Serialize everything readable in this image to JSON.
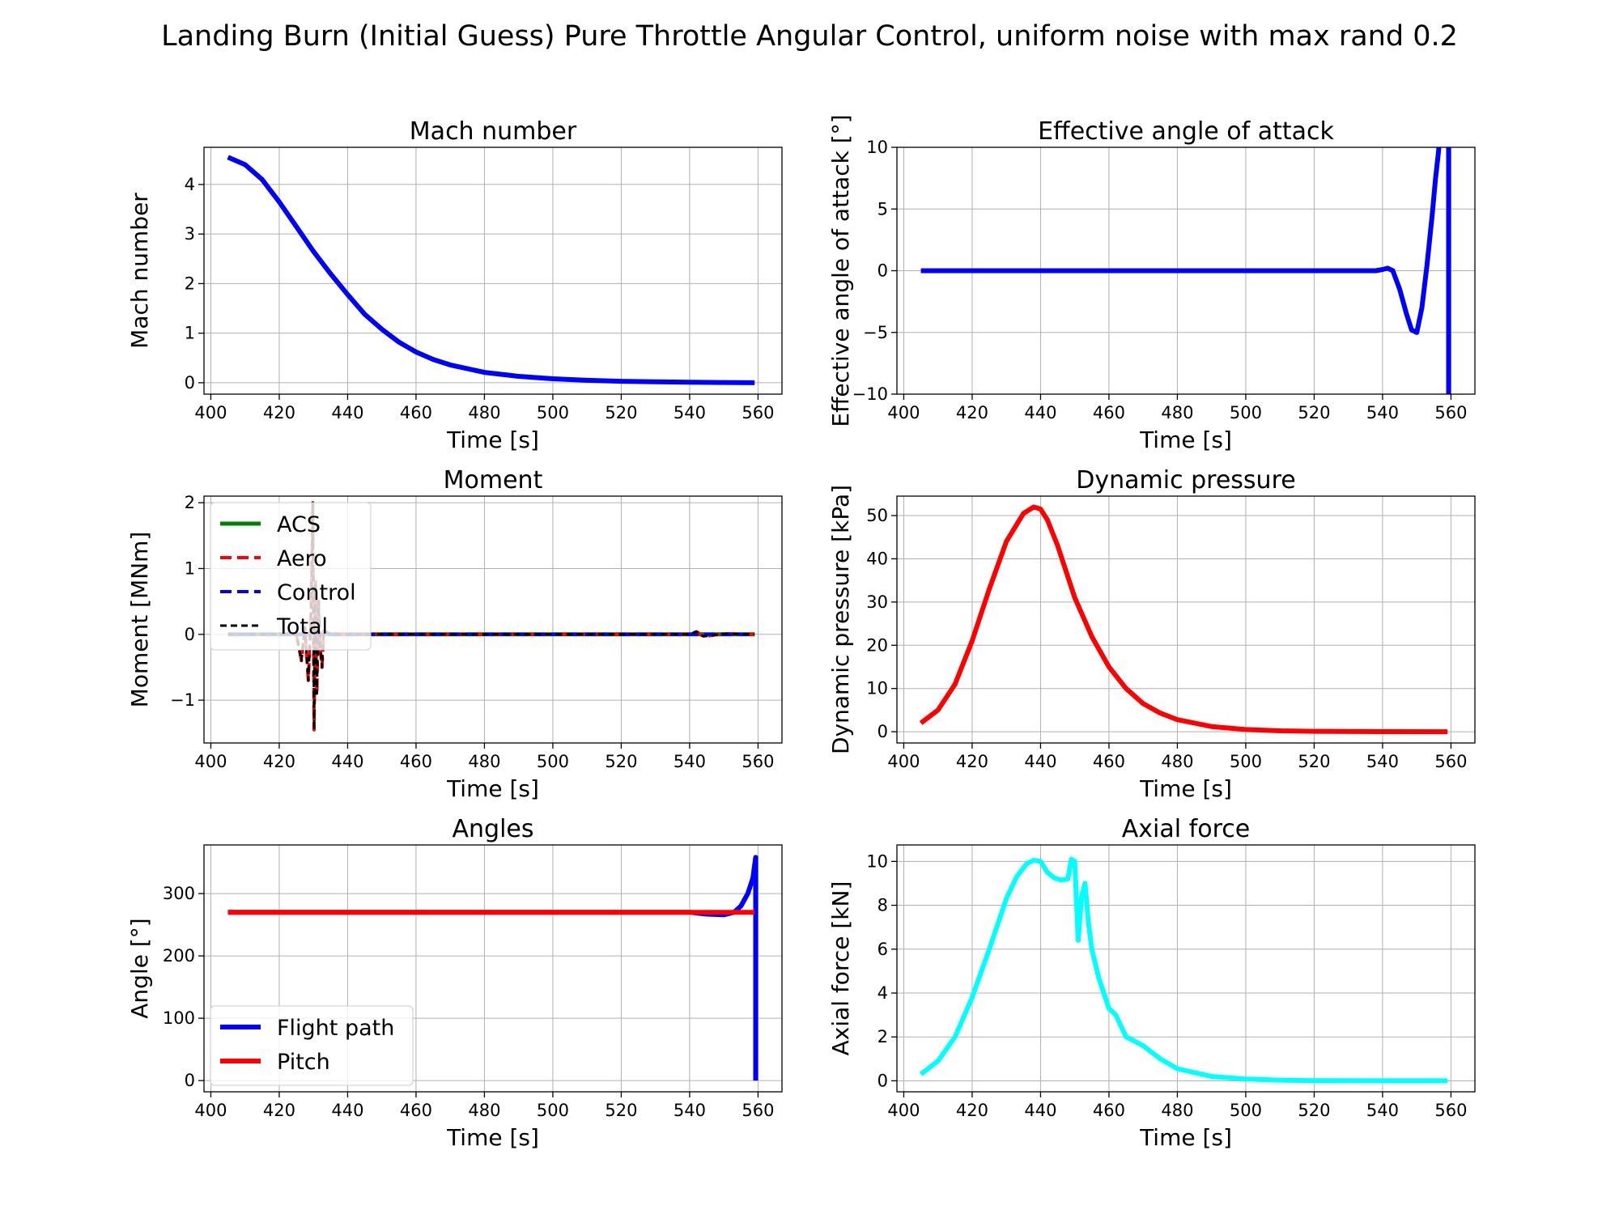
{
  "figure": {
    "title": "Landing Burn (Initial Guess) Pure Throttle Angular Control, uniform noise with max rand 0.2"
  },
  "chart_data": [
    {
      "type": "line",
      "title": "Mach number",
      "xlabel": "Time [s]",
      "ylabel": "Mach number",
      "xlim": [
        398,
        567
      ],
      "ylim": [
        -0.23,
        4.75
      ],
      "xticks": [
        "400",
        "420",
        "440",
        "460",
        "480",
        "500",
        "520",
        "540",
        "560"
      ],
      "yticks": [
        "0",
        "1",
        "2",
        "3",
        "4"
      ],
      "legend": null,
      "grid": true,
      "series": [
        {
          "color": "#0000ff",
          "width": 6,
          "dash": "",
          "x": [
            405,
            410,
            415,
            420,
            425,
            430,
            435,
            440,
            445,
            450,
            455,
            460,
            465,
            470,
            480,
            490,
            500,
            510,
            520,
            530,
            540,
            550,
            559
          ],
          "y": [
            4.55,
            4.4,
            4.1,
            3.65,
            3.15,
            2.65,
            2.2,
            1.78,
            1.38,
            1.08,
            0.82,
            0.62,
            0.47,
            0.36,
            0.21,
            0.13,
            0.08,
            0.05,
            0.03,
            0.02,
            0.01,
            0.005,
            0.0
          ]
        }
      ]
    },
    {
      "type": "line",
      "title": "Effective angle of attack",
      "xlabel": "Time [s]",
      "ylabel": "Effective angle of attack [°]",
      "xlim": [
        398,
        567
      ],
      "ylim": [
        -10,
        10
      ],
      "xticks": [
        "400",
        "420",
        "440",
        "460",
        "480",
        "500",
        "520",
        "540",
        "560"
      ],
      "yticks": [
        "−10",
        "−5",
        "0",
        "5",
        "10"
      ],
      "legend": null,
      "grid": true,
      "series": [
        {
          "color": "#0000ff",
          "width": 6,
          "dash": "",
          "x": [
            405,
            440,
            480,
            520,
            535,
            538,
            540,
            541.5,
            543,
            545,
            547,
            548.5,
            550,
            551.5,
            553,
            554.5,
            555.5,
            556.3,
            556.8
          ],
          "y": [
            0,
            0,
            0,
            0,
            0,
            0,
            0.1,
            0.2,
            0,
            -1.5,
            -3.5,
            -4.8,
            -5.0,
            -3.0,
            0.5,
            4.5,
            7.5,
            9.5,
            11.0
          ]
        },
        {
          "color": "#0000ff",
          "width": 6,
          "dash": "",
          "x": [
            559.3,
            559.3
          ],
          "y": [
            11,
            -11
          ]
        }
      ]
    },
    {
      "type": "line",
      "title": "Moment",
      "xlabel": "Time [s]",
      "ylabel": "Moment [MNm]",
      "xlim": [
        398,
        567
      ],
      "ylim": [
        -1.65,
        2.1
      ],
      "xticks": [
        "400",
        "420",
        "440",
        "460",
        "480",
        "500",
        "520",
        "540",
        "560"
      ],
      "yticks": [
        "−1",
        "0",
        "1",
        "2"
      ],
      "legend": {
        "location": "upper-left",
        "entries": [
          "ACS",
          "Aero",
          "Control",
          "Total"
        ]
      },
      "grid": true,
      "series": [
        {
          "name": "ACS",
          "color": "#008000",
          "width": 5,
          "dash": "",
          "x": [
            405,
            559
          ],
          "y": [
            0,
            0
          ]
        },
        {
          "name": "Aero",
          "color": "#ff0000",
          "width": 4,
          "dash": "14,7",
          "x": [
            405,
            425,
            426.5,
            427.5,
            428.5,
            429.3,
            429.8,
            430.2,
            430.6,
            431,
            431.5,
            432,
            432.5,
            433,
            435,
            540,
            542,
            544,
            546,
            550,
            559
          ],
          "y": [
            0,
            0,
            -0.4,
            0.1,
            -0.7,
            0.3,
            2.0,
            -1.45,
            0.8,
            -0.9,
            0.5,
            -0.2,
            -0.5,
            0.05,
            0,
            0,
            0.04,
            -0.03,
            -0.02,
            0.01,
            0
          ]
        },
        {
          "name": "Control",
          "color": "#0000ff",
          "width": 4,
          "dash": "14,7",
          "x": [
            405,
            559
          ],
          "y": [
            0,
            0
          ]
        },
        {
          "name": "Total",
          "color": "#000000",
          "width": 3,
          "dash": "8,5",
          "x": [
            405,
            425,
            426.5,
            427.5,
            428.5,
            429.3,
            429.8,
            430.2,
            430.6,
            431,
            431.5,
            432,
            432.5,
            433,
            435,
            540,
            542,
            544,
            546,
            550,
            559
          ],
          "y": [
            0,
            0,
            -0.4,
            0.1,
            -0.7,
            0.3,
            2.0,
            -1.45,
            0.8,
            -0.9,
            0.5,
            -0.2,
            -0.5,
            0.05,
            0,
            0,
            0.04,
            -0.03,
            -0.02,
            0.01,
            0
          ]
        }
      ]
    },
    {
      "type": "line",
      "title": "Dynamic pressure",
      "xlabel": "Time [s]",
      "ylabel": "Dynamic pressure [kPa]",
      "xlim": [
        398,
        567
      ],
      "ylim": [
        -2.6,
        54.5
      ],
      "xticks": [
        "400",
        "420",
        "440",
        "460",
        "480",
        "500",
        "520",
        "540",
        "560"
      ],
      "yticks": [
        "0",
        "10",
        "20",
        "30",
        "40",
        "50"
      ],
      "legend": null,
      "grid": true,
      "series": [
        {
          "color": "#ff0000",
          "width": 6,
          "dash": "",
          "x": [
            405,
            410,
            415,
            420,
            425,
            430,
            435,
            438,
            440,
            442,
            445,
            450,
            455,
            460,
            465,
            470,
            475,
            480,
            490,
            500,
            510,
            520,
            540,
            559
          ],
          "y": [
            2.0,
            5.0,
            11.0,
            21.0,
            33.0,
            44.0,
            50.5,
            52.0,
            51.5,
            49.0,
            43.0,
            31.0,
            22.0,
            15.0,
            10.0,
            6.5,
            4.3,
            2.8,
            1.2,
            0.5,
            0.2,
            0.1,
            0.02,
            0
          ]
        }
      ]
    },
    {
      "type": "line",
      "title": "Angles",
      "xlabel": "Time [s]",
      "ylabel": "Angle [°]",
      "xlim": [
        398,
        567
      ],
      "ylim": [
        -18,
        378
      ],
      "xticks": [
        "400",
        "420",
        "440",
        "460",
        "480",
        "500",
        "520",
        "540",
        "560"
      ],
      "yticks": [
        "0",
        "100",
        "200",
        "300"
      ],
      "legend": {
        "location": "lower-left",
        "entries": [
          "Flight path",
          "Pitch"
        ]
      },
      "grid": true,
      "series": [
        {
          "name": "Flight path",
          "color": "#0000ff",
          "width": 6,
          "dash": "",
          "x": [
            405,
            480,
            540,
            545,
            550,
            553,
            555,
            557,
            558.5,
            559.3,
            559.3
          ],
          "y": [
            270,
            270,
            270,
            267,
            266,
            270,
            280,
            300,
            325,
            358,
            0
          ]
        },
        {
          "name": "Pitch",
          "color": "#ff0000",
          "width": 6,
          "dash": "",
          "x": [
            405,
            559
          ],
          "y": [
            270,
            270
          ]
        }
      ]
    },
    {
      "type": "line",
      "title": "Axial force",
      "xlabel": "Time [s]",
      "ylabel": "Axial force [kN]",
      "xlim": [
        398,
        567
      ],
      "ylim": [
        -0.5,
        10.75
      ],
      "xticks": [
        "400",
        "420",
        "440",
        "460",
        "480",
        "500",
        "520",
        "540",
        "560"
      ],
      "yticks": [
        "0",
        "2",
        "4",
        "6",
        "8",
        "10"
      ],
      "legend": null,
      "grid": true,
      "series": [
        {
          "color": "#00ffff",
          "width": 6,
          "dash": "",
          "x": [
            405,
            410,
            415,
            420,
            425,
            430,
            433,
            436,
            438,
            440,
            442,
            444,
            446,
            448,
            449,
            450,
            451,
            452,
            453,
            454,
            455,
            457,
            460,
            462,
            465,
            467,
            470,
            475,
            480,
            490,
            500,
            510,
            520,
            540,
            559
          ],
          "y": [
            0.3,
            0.9,
            2.0,
            3.8,
            6.0,
            8.3,
            9.3,
            9.9,
            10.05,
            10.0,
            9.5,
            9.25,
            9.15,
            9.2,
            10.1,
            10.0,
            6.4,
            8.4,
            9.0,
            7.2,
            6.0,
            4.7,
            3.3,
            3.0,
            2.0,
            1.85,
            1.6,
            1.0,
            0.55,
            0.2,
            0.08,
            0.03,
            0.01,
            0,
            0
          ]
        }
      ]
    }
  ]
}
